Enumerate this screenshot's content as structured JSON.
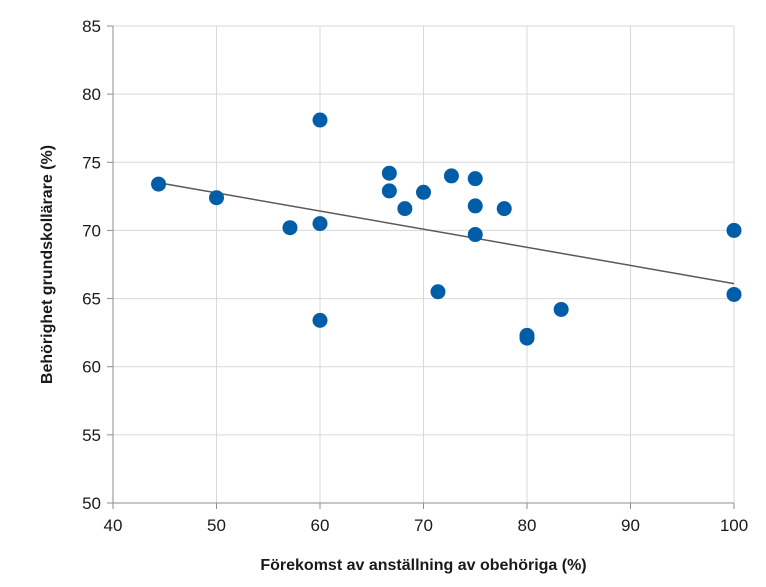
{
  "chart_data": {
    "type": "scatter",
    "xlabel": "Förekomst av anställning av obehöriga (%)",
    "ylabel": "Behörighet grundskollärare (%)",
    "xlim": [
      40,
      100
    ],
    "ylim": [
      50,
      85
    ],
    "xticks": [
      40,
      50,
      60,
      70,
      80,
      90,
      100
    ],
    "yticks": [
      50,
      55,
      60,
      65,
      70,
      75,
      80,
      85
    ],
    "grid": "vertical and horizontal",
    "marker_color": "#005ea8",
    "trendline": {
      "type": "linear",
      "x": [
        44.4,
        100
      ],
      "y": [
        73.5,
        66.1
      ]
    },
    "points": [
      {
        "x": 44.4,
        "y": 73.4
      },
      {
        "x": 50,
        "y": 72.4
      },
      {
        "x": 57.1,
        "y": 70.2
      },
      {
        "x": 60,
        "y": 78.1
      },
      {
        "x": 60,
        "y": 70.5
      },
      {
        "x": 60,
        "y": 63.4
      },
      {
        "x": 66.7,
        "y": 74.2
      },
      {
        "x": 66.7,
        "y": 72.9
      },
      {
        "x": 68.2,
        "y": 71.6
      },
      {
        "x": 70,
        "y": 72.8
      },
      {
        "x": 71.4,
        "y": 65.5
      },
      {
        "x": 72.7,
        "y": 74.0
      },
      {
        "x": 75,
        "y": 73.8
      },
      {
        "x": 75,
        "y": 71.8
      },
      {
        "x": 75,
        "y": 69.7
      },
      {
        "x": 77.8,
        "y": 71.6
      },
      {
        "x": 80,
        "y": 62.3
      },
      {
        "x": 80,
        "y": 62.1
      },
      {
        "x": 83.3,
        "y": 64.2
      },
      {
        "x": 100,
        "y": 70.0
      },
      {
        "x": 100,
        "y": 65.3
      }
    ]
  }
}
